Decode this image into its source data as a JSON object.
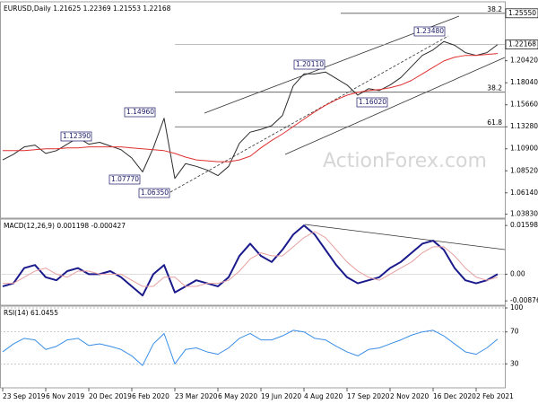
{
  "chart_data": [
    {
      "type": "line",
      "title": "EURUSD,Daily  1.21625 1.22369 1.21553 1.22168",
      "watermark": "ActionForex.com",
      "categories": [
        "23 Sep 2019",
        null,
        null,
        null,
        "6 Nov 2019",
        null,
        null,
        null,
        "20 Dec 2019",
        null,
        null,
        null,
        "6 Feb 2020",
        null,
        null,
        null,
        "23 Mar 2020",
        null,
        null,
        null,
        "6 May 2020",
        null,
        null,
        null,
        "19 Jun 2020",
        null,
        null,
        null,
        "4 Aug 2020",
        null,
        null,
        null,
        "17 Sep 2020",
        null,
        null,
        null,
        "2 Nov 2020",
        null,
        null,
        null,
        "16 Dec 2020",
        null,
        null,
        null,
        "2 Feb 2021",
        null,
        null
      ],
      "series": [
        {
          "color": "#2b2b2b",
          "values": [
            1.097,
            1.103,
            1.111,
            1.113,
            1.104,
            1.107,
            1.114,
            1.121,
            1.114,
            1.116,
            1.112,
            1.108,
            1.099,
            1.084,
            1.11,
            1.142,
            1.077,
            1.093,
            1.09,
            1.086,
            1.08,
            1.09,
            1.115,
            1.127,
            1.13,
            1.134,
            1.145,
            1.177,
            1.19,
            1.19,
            1.192,
            1.185,
            1.178,
            1.167,
            1.174,
            1.172,
            1.178,
            1.186,
            1.198,
            1.21,
            1.216,
            1.225,
            1.221,
            1.213,
            1.21,
            1.213,
            1.2217
          ]
        },
        {
          "color": "#e03030",
          "values": [
            1.107,
            1.107,
            1.107,
            1.108,
            1.109,
            1.109,
            1.11,
            1.11,
            1.111,
            1.111,
            1.111,
            1.111,
            1.11,
            1.109,
            1.108,
            1.107,
            1.104,
            1.1,
            1.097,
            1.096,
            1.095,
            1.095,
            1.097,
            1.101,
            1.11,
            1.118,
            1.125,
            1.133,
            1.141,
            1.149,
            1.156,
            1.162,
            1.167,
            1.17,
            1.172,
            1.173,
            1.175,
            1.178,
            1.183,
            1.19,
            1.197,
            1.204,
            1.208,
            1.21,
            1.21,
            1.211,
            1.212
          ]
        }
      ],
      "ylim": [
        1.034,
        1.266
      ],
      "yticks": [
        {
          "value": 1.2042,
          "label": "1.20420"
        },
        {
          "value": 1.1804,
          "label": "1.18040"
        },
        {
          "value": 1.1566,
          "label": "1.15660"
        },
        {
          "value": 1.1328,
          "label": "1.13280"
        },
        {
          "value": 1.109,
          "label": "1.10900"
        },
        {
          "value": 1.0852,
          "label": "1.08520"
        },
        {
          "value": 1.0614,
          "label": "1.06140"
        },
        {
          "value": 1.0383,
          "label": "1.03830"
        }
      ],
      "boxed_ticks": [
        {
          "value": 1.2555,
          "label": "1.25550"
        },
        {
          "value": 1.22168,
          "label": "1.22168"
        }
      ],
      "levels": [
        {
          "value": 1.2555,
          "label": "38.2"
        },
        {
          "value": 1.1702,
          "label": "38.2"
        },
        {
          "value": 1.1328,
          "label": "61.8"
        }
      ],
      "annotations": [
        "1.23480",
        "1.20110",
        "1.14960",
        "1.12390",
        "1.07770",
        "1.06350",
        "1.16020"
      ]
    },
    {
      "type": "line",
      "title": "MACD(12,26,9) 0.001198 -0.000427",
      "series": [
        {
          "color": "#1a1a8c",
          "values": [
            -0.004,
            -0.003,
            0.002,
            0.003,
            -0.001,
            -0.002,
            0.001,
            0.002,
            0.0,
            0.0,
            0.001,
            -0.001,
            -0.004,
            -0.007,
            0.0,
            0.003,
            -0.006,
            -0.004,
            -0.002,
            -0.003,
            -0.004,
            -0.001,
            0.006,
            0.01,
            0.006,
            0.004,
            0.008,
            0.013,
            0.016,
            0.013,
            0.008,
            0.003,
            -0.001,
            -0.003,
            -0.002,
            -0.001,
            0.002,
            0.004,
            0.007,
            0.01,
            0.011,
            0.008,
            0.002,
            -0.002,
            -0.003,
            -0.002,
            0.0
          ]
        },
        {
          "color": "#e8a0a0",
          "values": [
            -0.003,
            -0.003,
            -0.001,
            0.001,
            0.002,
            0.0,
            -0.001,
            0.001,
            0.001,
            0.0,
            0.0,
            0.0,
            -0.002,
            -0.004,
            -0.004,
            -0.001,
            -0.001,
            -0.004,
            -0.004,
            -0.003,
            -0.003,
            -0.002,
            0.001,
            0.005,
            0.007,
            0.006,
            0.006,
            0.009,
            0.012,
            0.014,
            0.012,
            0.008,
            0.004,
            0.001,
            -0.001,
            -0.002,
            0.0,
            0.002,
            0.004,
            0.007,
            0.009,
            0.009,
            0.006,
            0.002,
            -0.001,
            -0.002,
            -0.001
          ]
        }
      ],
      "ylim": [
        -0.0102,
        0.0175
      ],
      "yticks": [
        0.015983,
        {
          "value": 0,
          "label": "0.00"
        },
        -0.008762
      ]
    },
    {
      "type": "line",
      "title": "RSI(14) 61.0455",
      "series": [
        {
          "color": "#3a8ee6",
          "values": [
            45,
            55,
            62,
            60,
            48,
            52,
            60,
            62,
            53,
            55,
            52,
            48,
            40,
            28,
            55,
            68,
            30,
            48,
            50,
            45,
            42,
            50,
            62,
            68,
            60,
            60,
            65,
            72,
            70,
            62,
            60,
            52,
            45,
            40,
            48,
            50,
            55,
            60,
            66,
            70,
            72,
            65,
            55,
            45,
            42,
            50,
            61
          ]
        }
      ],
      "ylim": [
        0,
        100
      ],
      "yticks": [
        100,
        70,
        30
      ]
    }
  ]
}
